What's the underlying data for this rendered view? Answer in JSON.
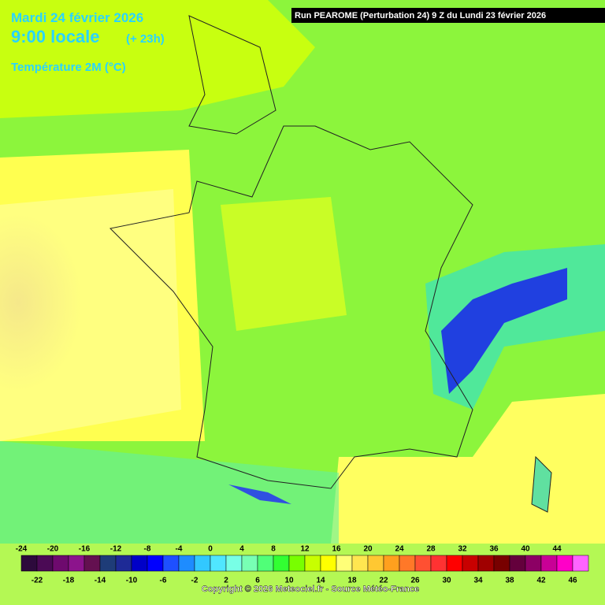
{
  "header": {
    "date": "Mardi 24 février 2026",
    "time": "9:00 locale",
    "lead": "(+ 23h)",
    "parameter": "Température 2M (°C)",
    "run": "Run PEAROME (Perturbation 24) 9 Z du Lundi 23 février 2026"
  },
  "legend": {
    "ticks": [
      -24,
      -22,
      -20,
      -18,
      -16,
      -14,
      -12,
      -10,
      -8,
      -6,
      -4,
      -2,
      0,
      2,
      4,
      6,
      8,
      10,
      12,
      14,
      16,
      18,
      20,
      22,
      24,
      26,
      28,
      30,
      32,
      34,
      36,
      38,
      40,
      42,
      44,
      46
    ],
    "colors": [
      "#2d0a3c",
      "#4b0a55",
      "#6e0a6e",
      "#8c148c",
      "#641050",
      "#1e3c78",
      "#1e2a96",
      "#0000c8",
      "#0000ff",
      "#1e50ff",
      "#1e8cff",
      "#32c8ff",
      "#50e6ff",
      "#78ffe6",
      "#78ffb4",
      "#50ff78",
      "#32ff32",
      "#78ff00",
      "#c8ff00",
      "#ffff00",
      "#ffff78",
      "#ffe650",
      "#ffc832",
      "#ffa01e",
      "#ff7828",
      "#ff5032",
      "#ff3232",
      "#ff0000",
      "#c80000",
      "#a00000",
      "#780000",
      "#64003c",
      "#8c0064",
      "#c80096",
      "#ff00c8",
      "#ff64ff"
    ]
  },
  "footer": {
    "copyright": "Copyright © 2026 Meteociel.fr - Source Météo-France"
  }
}
